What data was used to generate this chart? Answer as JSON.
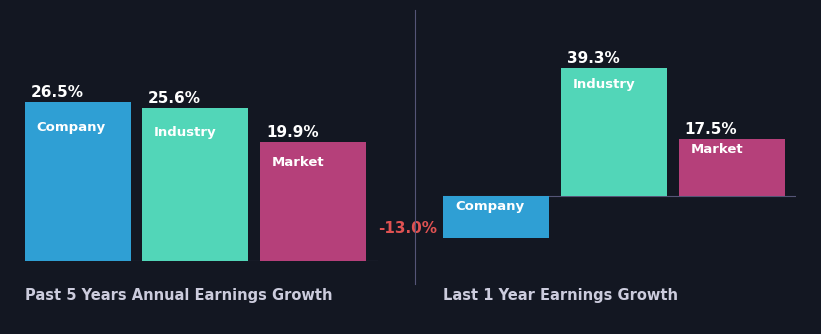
{
  "background_color": "#131722",
  "chart1_title": "Past 5 Years Annual Earnings Growth",
  "chart2_title": "Last 1 Year Earnings Growth",
  "chart1": {
    "categories": [
      "Company",
      "Industry",
      "Market"
    ],
    "values": [
      26.5,
      25.6,
      19.9
    ],
    "colors": [
      "#2f9fd4",
      "#52d6b8",
      "#b5407a"
    ]
  },
  "chart2": {
    "categories": [
      "Company",
      "Industry",
      "Market"
    ],
    "values": [
      -13.0,
      39.3,
      17.5
    ],
    "colors": [
      "#2f9fd4",
      "#52d6b8",
      "#b5407a"
    ]
  },
  "label_fontsize": 9.5,
  "value_fontsize": 11,
  "title_fontsize": 10.5,
  "bar_label_color": "#ffffff",
  "negative_value_color": "#e05252",
  "positive_value_color": "#ffffff",
  "title_color": "#ccccdd",
  "baseline_color": "#555577"
}
